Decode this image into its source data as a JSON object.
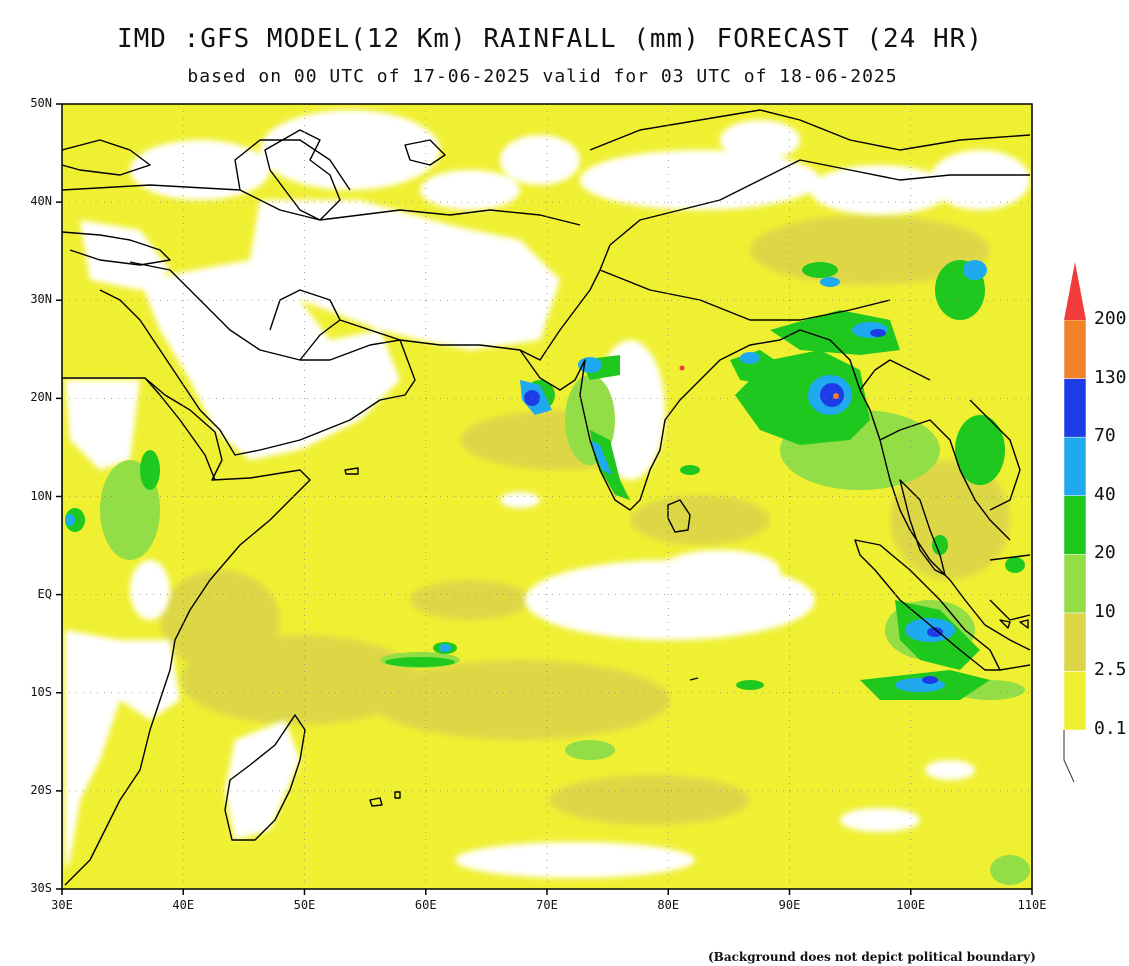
{
  "title": "IMD :GFS MODEL(12 Km) RAINFALL (mm) FORECAST (24 HR)",
  "subtitle": "based on 00 UTC of 17-06-2025 valid for 03 UTC of 18-06-2025",
  "footnote": "(Background does not depict political boundary)",
  "lat_labels": [
    "50N",
    "40N",
    "30N",
    "20N",
    "10N",
    "EQ",
    "10S",
    "20S",
    "30S"
  ],
  "lon_labels": [
    "30E",
    "40E",
    "50E",
    "60E",
    "70E",
    "80E",
    "90E",
    "100E",
    "110E"
  ],
  "legend": {
    "levels": [
      "0.1",
      "2.5",
      "10",
      "20",
      "40",
      "70",
      "130",
      "200"
    ],
    "colors": [
      "#f0f033",
      "#dcd548",
      "#93dd46",
      "#1ec81e",
      "#1faaf0",
      "#1e3ce6",
      "#f08228",
      "#f03c3c"
    ]
  },
  "map": {
    "background_color": "#ffffff",
    "coastline_color": "#000000"
  }
}
